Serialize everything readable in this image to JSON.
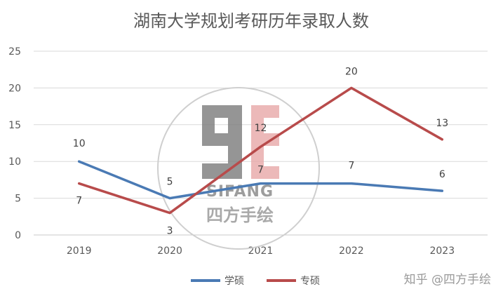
{
  "chart_data": {
    "type": "line",
    "title": "湖南大学规划考研历年录取人数",
    "categories": [
      "2019",
      "2020",
      "2021",
      "2022",
      "2023"
    ],
    "ylim": [
      0,
      25
    ],
    "yticks": [
      0,
      5,
      10,
      15,
      20,
      25
    ],
    "grid": true,
    "legend_position": "bottom",
    "series": [
      {
        "name": "学硕",
        "values": [
          10,
          5,
          7,
          7,
          6
        ],
        "color": "#4a7ab4"
      },
      {
        "name": "专硕",
        "values": [
          7,
          3,
          12,
          20,
          13
        ],
        "color": "#b84b4b"
      }
    ]
  },
  "watermark": {
    "logo_text": "SIFANG",
    "logo_sub": "四方手绘",
    "credit": "知乎 @四方手绘"
  }
}
